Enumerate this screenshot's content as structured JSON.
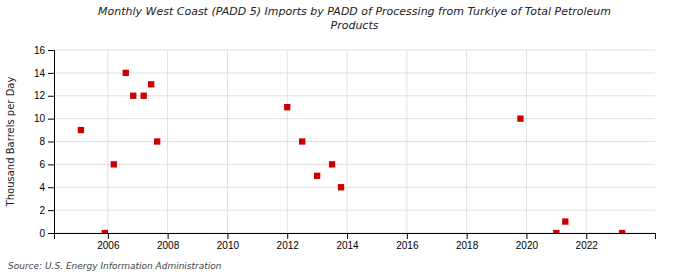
{
  "chart_data": {
    "type": "scatter",
    "title": "Monthly West Coast (PADD 5) Imports by PADD of Processing from Turkiye of Total Petroleum\nProducts",
    "y_label": "Thousand Barrels per Day",
    "annotations": [
      "Source: U.S. Energy Information Administration"
    ],
    "color": "#cc0000",
    "marker": "square",
    "grid": true,
    "xlim": [
      2004.2,
      2024.3
    ],
    "ylim": [
      0,
      16
    ],
    "xticks": [
      2006,
      2008,
      2010,
      2012,
      2014,
      2016,
      2018,
      2020,
      2022
    ],
    "yticks": [
      0,
      2,
      4,
      6,
      8,
      10,
      12,
      14,
      16
    ],
    "x": [
      2005.1,
      2005.9,
      2006.2,
      2006.6,
      2006.85,
      2007.2,
      2007.45,
      2007.65,
      2012.0,
      2012.5,
      2013.0,
      2013.5,
      2013.8,
      2019.8,
      2021.0,
      2021.3,
      2023.2
    ],
    "values": [
      9,
      0,
      6,
      14,
      12,
      12,
      13,
      8,
      11,
      8,
      5,
      6,
      4,
      10,
      0,
      1,
      0
    ]
  }
}
